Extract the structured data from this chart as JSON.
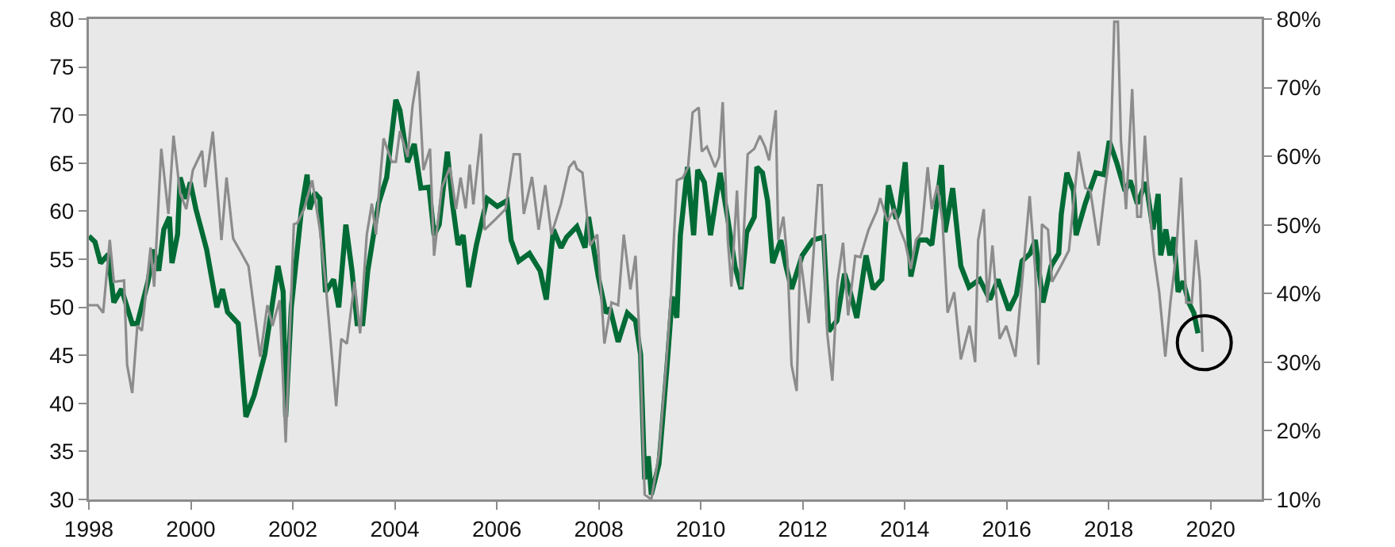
{
  "chart_data": {
    "type": "line",
    "xlim": [
      1998,
      2021
    ],
    "xticks": [
      1998,
      2000,
      2002,
      2004,
      2006,
      2008,
      2010,
      2012,
      2014,
      2016,
      2018,
      2020
    ],
    "ylim": [
      30,
      80
    ],
    "yticks": [
      30,
      35,
      40,
      45,
      50,
      55,
      60,
      65,
      70,
      75,
      80
    ],
    "y2lim": [
      10,
      80
    ],
    "y2ticks": [
      {
        "value": 10,
        "label": "10%"
      },
      {
        "value": 20,
        "label": "20%"
      },
      {
        "value": 30,
        "label": "30%"
      },
      {
        "value": 40,
        "label": "40%"
      },
      {
        "value": 50,
        "label": "50%"
      },
      {
        "value": 60,
        "label": "60%"
      },
      {
        "value": 70,
        "label": "70%"
      },
      {
        "value": 80,
        "label": "80%"
      }
    ],
    "grid": false,
    "series": [
      {
        "color": "#8c8c8c",
        "axis": "y2",
        "x": [
          1998.0,
          1998.17,
          1998.28,
          1998.41,
          1998.49,
          1998.69,
          1998.75,
          1998.85,
          1998.95,
          1999.04,
          1999.21,
          1999.28,
          1999.42,
          1999.56,
          1999.66,
          1999.79,
          1999.91,
          2000.04,
          2000.22,
          2000.28,
          2000.43,
          2000.6,
          2000.7,
          2000.83,
          2000.96,
          2001.13,
          2001.36,
          2001.5,
          2001.6,
          2001.74,
          2001.86,
          2002.02,
          2002.09,
          2002.22,
          2002.38,
          2002.53,
          2002.64,
          2002.85,
          2002.95,
          2003.06,
          2003.21,
          2003.32,
          2003.45,
          2003.55,
          2003.63,
          2003.68,
          2003.78,
          2003.94,
          2004.02,
          2004.1,
          2004.25,
          2004.35,
          2004.46,
          2004.56,
          2004.69,
          2004.77,
          2004.92,
          2005.08,
          2005.2,
          2005.29,
          2005.39,
          2005.47,
          2005.54,
          2005.69,
          2005.76,
          2005.97,
          2006.17,
          2006.33,
          2006.45,
          2006.53,
          2006.69,
          2006.82,
          2006.95,
          2007.07,
          2007.26,
          2007.42,
          2007.52,
          2007.57,
          2007.68,
          2007.83,
          2007.97,
          2008.11,
          2008.25,
          2008.38,
          2008.49,
          2008.62,
          2008.72,
          2008.81,
          2008.9,
          2009.03,
          2009.18,
          2009.32,
          2009.42,
          2009.53,
          2009.65,
          2009.75,
          2009.84,
          2009.96,
          2010.02,
          2010.12,
          2010.28,
          2010.36,
          2010.43,
          2010.53,
          2010.6,
          2010.71,
          2010.79,
          2010.92,
          2011.05,
          2011.16,
          2011.26,
          2011.34,
          2011.47,
          2011.52,
          2011.62,
          2011.7,
          2011.78,
          2011.88,
          2011.95,
          2012.12,
          2012.3,
          2012.37,
          2012.48,
          2012.58,
          2012.68,
          2012.79,
          2012.89,
          2013.03,
          2013.13,
          2013.29,
          2013.45,
          2013.52,
          2013.66,
          2013.79,
          2013.91,
          2014.01,
          2014.12,
          2014.22,
          2014.33,
          2014.45,
          2014.53,
          2014.64,
          2014.74,
          2014.84,
          2014.97,
          2015.1,
          2015.27,
          2015.38,
          2015.44,
          2015.55,
          2015.62,
          2015.72,
          2015.86,
          2015.99,
          2016.17,
          2016.32,
          2016.45,
          2016.56,
          2016.62,
          2016.69,
          2016.81,
          2016.89,
          2017.06,
          2017.22,
          2017.41,
          2017.54,
          2017.64,
          2017.8,
          2017.93,
          2018.04,
          2018.11,
          2018.18,
          2018.24,
          2018.34,
          2018.46,
          2018.56,
          2018.63,
          2018.71,
          2018.8,
          2018.89,
          2018.99,
          2019.11,
          2019.21,
          2019.32,
          2019.42,
          2019.52,
          2019.63,
          2019.71,
          2019.79,
          2019.84
        ],
        "values": [
          38.3,
          38.3,
          37.2,
          47.8,
          41.7,
          41.9,
          29.6,
          25.5,
          35.3,
          34.6,
          46.7,
          41.0,
          61.1,
          51.6,
          63.0,
          54.6,
          52.3,
          58.0,
          60.8,
          55.5,
          63.6,
          47.8,
          56.9,
          48.0,
          46.3,
          44.0,
          30.8,
          38.3,
          35.3,
          39.0,
          18.3,
          50.1,
          50.3,
          52.3,
          56.5,
          49.3,
          41.7,
          23.6,
          33.4,
          32.7,
          41.7,
          34.2,
          48.6,
          53.1,
          48.6,
          53.9,
          62.6,
          59.2,
          59.2,
          63.7,
          59.9,
          67.5,
          72.4,
          58.0,
          61.1,
          45.5,
          55.4,
          58.4,
          52.3,
          56.9,
          52.4,
          58.8,
          53.0,
          63.3,
          49.3,
          50.8,
          52.3,
          60.3,
          60.3,
          51.6,
          57.0,
          49.3,
          55.8,
          48.6,
          53.1,
          58.4,
          59.3,
          58.2,
          57.6,
          47.0,
          48.6,
          32.7,
          38.7,
          38.3,
          48.6,
          40.6,
          45.5,
          31.9,
          10.7,
          10.0,
          16.7,
          29.6,
          40.2,
          56.5,
          56.9,
          58.4,
          66.4,
          67.1,
          60.7,
          61.4,
          58.4,
          59.9,
          67.9,
          47.8,
          41.0,
          55.0,
          41.0,
          60.3,
          61.1,
          63.0,
          61.4,
          59.4,
          66.7,
          47.8,
          51.2,
          44.8,
          29.6,
          25.8,
          45.5,
          35.7,
          55.8,
          55.8,
          34.2,
          27.3,
          41.7,
          47.4,
          36.8,
          45.5,
          45.3,
          49.3,
          52.0,
          53.9,
          50.5,
          52.3,
          49.3,
          47.4,
          43.6,
          47.8,
          48.9,
          58.4,
          52.3,
          55.8,
          50.5,
          37.2,
          40.2,
          30.4,
          35.3,
          30.0,
          47.8,
          52.3,
          38.7,
          47.0,
          33.4,
          35.3,
          30.8,
          43.3,
          54.2,
          43.3,
          29.6,
          50.1,
          49.3,
          41.7,
          44.0,
          46.3,
          60.7,
          55.4,
          55.0,
          47.0,
          55.4,
          61.4,
          79.6,
          79.6,
          62.2,
          52.3,
          69.8,
          51.2,
          51.2,
          63.0,
          52.3,
          45.5,
          40.2,
          30.8,
          38.7,
          45.5,
          56.9,
          38.7,
          38.7,
          47.8,
          41.7,
          31.5
        ]
      },
      {
        "color": "#006b35",
        "x": [
          1998.0,
          1998.12,
          1998.23,
          1998.38,
          1998.49,
          1998.64,
          1998.85,
          1998.95,
          1999.16,
          1999.27,
          1999.37,
          1999.47,
          1999.58,
          1999.63,
          1999.74,
          1999.79,
          1999.91,
          1999.99,
          2000.1,
          2000.31,
          2000.51,
          2000.62,
          2000.72,
          2000.93,
          2001.08,
          2001.24,
          2001.45,
          2001.71,
          2001.81,
          2001.86,
          2001.97,
          2002.17,
          2002.28,
          2002.33,
          2002.43,
          2002.53,
          2002.64,
          2002.8,
          2002.9,
          2003.04,
          2003.16,
          2003.26,
          2003.37,
          2003.47,
          2003.68,
          2003.84,
          2004.02,
          2004.1,
          2004.25,
          2004.38,
          2004.51,
          2004.67,
          2004.77,
          2004.87,
          2005.03,
          2005.13,
          2005.24,
          2005.34,
          2005.45,
          2005.6,
          2005.81,
          2006.01,
          2006.2,
          2006.28,
          2006.43,
          2006.64,
          2006.85,
          2006.97,
          2007.11,
          2007.26,
          2007.37,
          2007.57,
          2007.73,
          2007.8,
          2007.99,
          2008.14,
          2008.22,
          2008.38,
          2008.56,
          2008.72,
          2008.82,
          2008.9,
          2008.97,
          2009.03,
          2009.18,
          2009.34,
          2009.44,
          2009.53,
          2009.6,
          2009.74,
          2009.86,
          2009.94,
          2010.07,
          2010.19,
          2010.38,
          2010.53,
          2010.67,
          2010.79,
          2010.9,
          2011.05,
          2011.1,
          2011.21,
          2011.31,
          2011.41,
          2011.57,
          2011.67,
          2011.78,
          2011.99,
          2012.2,
          2012.41,
          2012.51,
          2012.67,
          2012.82,
          2012.93,
          2013.06,
          2013.24,
          2013.38,
          2013.55,
          2013.68,
          2013.83,
          2013.89,
          2014.01,
          2014.12,
          2014.27,
          2014.43,
          2014.53,
          2014.72,
          2014.79,
          2014.94,
          2015.1,
          2015.26,
          2015.47,
          2015.67,
          2015.83,
          2016.04,
          2016.19,
          2016.3,
          2016.46,
          2016.56,
          2016.71,
          2016.87,
          2017.02,
          2017.07,
          2017.18,
          2017.31,
          2017.36,
          2017.54,
          2017.75,
          2017.91,
          2018.01,
          2018.16,
          2018.32,
          2018.42,
          2018.56,
          2018.73,
          2018.87,
          2018.97,
          2019.02,
          2019.12,
          2019.2,
          2019.28,
          2019.36,
          2019.46,
          2019.57,
          2019.67,
          2019.75
        ],
        "values": [
          57.4,
          56.8,
          54.6,
          55.5,
          50.5,
          51.9,
          48.3,
          48.3,
          52.7,
          56.0,
          53.8,
          58.1,
          59.4,
          54.6,
          57.6,
          63.5,
          61.3,
          63.0,
          60.2,
          56.0,
          50.0,
          51.9,
          49.5,
          48.3,
          38.6,
          40.8,
          45.1,
          54.3,
          51.6,
          38.6,
          50.0,
          60.2,
          63.8,
          60.2,
          61.9,
          61.3,
          51.6,
          52.9,
          50.0,
          58.6,
          53.8,
          48.3,
          48.3,
          53.8,
          60.8,
          63.5,
          71.6,
          70.5,
          65.1,
          67.0,
          62.4,
          62.5,
          57.5,
          58.6,
          66.2,
          60.8,
          56.5,
          57.5,
          52.1,
          56.5,
          61.3,
          60.5,
          61.1,
          57.0,
          54.8,
          55.6,
          53.8,
          50.8,
          58.1,
          56.2,
          57.3,
          58.4,
          56.2,
          59.4,
          53.2,
          49.4,
          49.9,
          46.4,
          49.4,
          48.6,
          45.1,
          32.1,
          34.5,
          30.5,
          33.7,
          44.0,
          51.1,
          48.9,
          57.5,
          64.6,
          57.5,
          64.3,
          63.0,
          57.5,
          64.0,
          59.2,
          54.3,
          51.9,
          57.8,
          59.4,
          64.6,
          64.0,
          61.1,
          54.6,
          57.0,
          54.3,
          51.9,
          55.4,
          57.0,
          57.3,
          47.5,
          48.6,
          53.5,
          51.6,
          48.9,
          55.4,
          51.9,
          52.9,
          62.7,
          59.2,
          60.0,
          65.1,
          53.2,
          57.0,
          57.0,
          56.5,
          64.8,
          57.8,
          62.4,
          54.3,
          52.1,
          52.9,
          50.8,
          52.9,
          49.7,
          51.3,
          54.8,
          55.6,
          57.0,
          50.5,
          54.3,
          55.6,
          59.7,
          64.0,
          62.1,
          57.5,
          60.8,
          64.0,
          63.8,
          67.3,
          65.0,
          62.1,
          63.2,
          60.8,
          63.0,
          58.1,
          61.8,
          55.4,
          58.1,
          55.4,
          57.3,
          51.6,
          52.7,
          50.5,
          49.4,
          47.3
        ]
      }
    ]
  }
}
